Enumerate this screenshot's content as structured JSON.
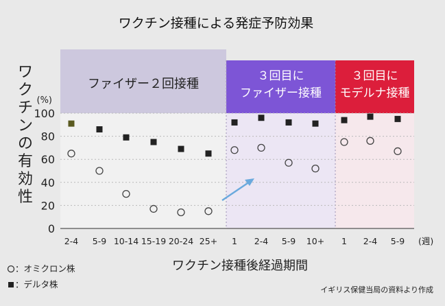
{
  "title": "ワクチン接種による発症予防効果",
  "source": "イギリス保健当局の資料より作成",
  "legend": [
    {
      "marker": "circle",
      "label": "：オミクロン株"
    },
    {
      "marker": "square",
      "label": "：デルタ株"
    }
  ],
  "colors": {
    "pfizer_band": "#cdc8de",
    "booster_pfizer_band": "#7d55d6",
    "booster_moderna_band": "#dc1e3b",
    "booster_pfizer_area": "#ece6f4",
    "booster_moderna_area": "#f6e8ec",
    "delta_default": "#222222",
    "delta_first": "#5a5a20",
    "omicron": "#444444",
    "arrow": "#6aa9dd"
  },
  "chart_data": {
    "type": "scatter",
    "ylabel": "ワクチンの有効性",
    "y_unit": "(%)",
    "xlabel": "ワクチン接種後経過期間",
    "x_unit": "(週)",
    "ylim": [
      0,
      100
    ],
    "yticks": [
      0,
      20,
      40,
      60,
      80,
      100
    ],
    "grid": true,
    "groups": [
      {
        "label": "ファイザー２回接種",
        "categories": [
          "2-4",
          "5-9",
          "10-14",
          "15-19",
          "20-24",
          "25+"
        ]
      },
      {
        "label": "３回目に\nファイザー接種",
        "categories": [
          "1",
          "2-4",
          "5-9",
          "10+"
        ]
      },
      {
        "label": "３回目に\nモデルナ接種",
        "categories": [
          "1",
          "2-4",
          "5-9"
        ]
      }
    ],
    "series": [
      {
        "name": "オミクロン株",
        "marker": "circle",
        "values": [
          65,
          50,
          30,
          17,
          14,
          15,
          68,
          70,
          57,
          52,
          75,
          76,
          67
        ]
      },
      {
        "name": "デルタ株",
        "marker": "square",
        "values": [
          91,
          86,
          79,
          75,
          69,
          65,
          92,
          96,
          92,
          91,
          94,
          97,
          95
        ]
      }
    ]
  }
}
